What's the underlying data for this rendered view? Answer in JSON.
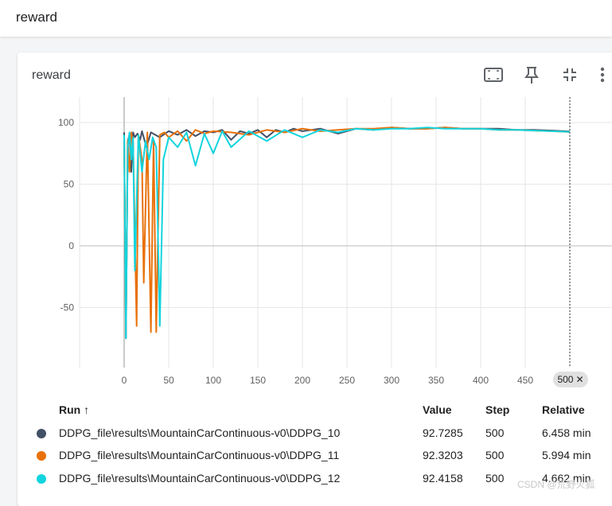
{
  "header": {
    "title": "reward"
  },
  "card": {
    "title": "reward"
  },
  "toolbar": {
    "icons": [
      "fullscreen-icon",
      "pin-icon",
      "collapse-icon",
      "more-vert-icon"
    ]
  },
  "chart_data": {
    "type": "line",
    "title": "reward",
    "xlabel": "",
    "ylabel": "",
    "xlim": [
      -50,
      550
    ],
    "ylim": [
      -100,
      120
    ],
    "x_ticks": [
      "0",
      "50",
      "100",
      "150",
      "200",
      "250",
      "300",
      "350",
      "400",
      "450"
    ],
    "x_tick_values": [
      0,
      50,
      100,
      150,
      200,
      250,
      300,
      350,
      400,
      450
    ],
    "y_ticks": [
      "100",
      "50",
      "0",
      "-50"
    ],
    "y_tick_values": [
      100,
      50,
      0,
      -50
    ],
    "grid": true,
    "hover_step": "500",
    "series": [
      {
        "name": "DDPG_file\\results\\MountainCarContinuous-v0\\DDPG_10",
        "color": "#425066",
        "x": [
          0,
          2,
          4,
          6,
          8,
          10,
          12,
          15,
          18,
          20,
          25,
          30,
          40,
          50,
          60,
          70,
          80,
          90,
          100,
          110,
          120,
          130,
          140,
          150,
          160,
          170,
          180,
          190,
          200,
          220,
          240,
          260,
          280,
          300,
          320,
          340,
          360,
          380,
          400,
          420,
          440,
          460,
          480,
          500
        ],
        "y": [
          92,
          -75,
          85,
          90,
          60,
          92,
          88,
          91,
          86,
          93,
          80,
          92,
          88,
          93,
          90,
          94,
          89,
          93,
          92,
          94,
          86,
          93,
          91,
          94,
          88,
          94,
          92,
          95,
          93,
          95,
          91,
          95,
          94,
          96,
          95,
          95,
          96,
          95,
          95,
          95,
          94,
          94,
          93.5,
          92.73
        ]
      },
      {
        "name": "DDPG_file\\results\\MountainCarContinuous-v0\\DDPG_11",
        "color": "#e8710a",
        "x": [
          0,
          2,
          4,
          6,
          8,
          10,
          14,
          16,
          20,
          22,
          26,
          30,
          33,
          36,
          40,
          45,
          50,
          60,
          70,
          80,
          90,
          100,
          120,
          140,
          160,
          180,
          200,
          220,
          240,
          260,
          280,
          300,
          320,
          340,
          360,
          380,
          400,
          420,
          440,
          460,
          480,
          500
        ],
        "y": [
          88,
          -70,
          85,
          60,
          92,
          85,
          -65,
          90,
          70,
          -30,
          92,
          -70,
          85,
          -70,
          90,
          92,
          88,
          93,
          85,
          94,
          91,
          93,
          92,
          90,
          94,
          92,
          95,
          93,
          94,
          95,
          95,
          96,
          95,
          95,
          96,
          95,
          95,
          94,
          94,
          93.5,
          93,
          92.32
        ]
      },
      {
        "name": "DDPG_file\\results\\MountainCarContinuous-v0\\DDPG_12",
        "color": "#12d4de",
        "x": [
          0,
          2,
          4,
          6,
          8,
          10,
          12,
          16,
          20,
          24,
          28,
          32,
          36,
          40,
          44,
          50,
          60,
          70,
          80,
          90,
          100,
          110,
          120,
          140,
          160,
          180,
          200,
          220,
          240,
          260,
          280,
          300,
          320,
          340,
          360,
          380,
          400,
          420,
          440,
          460,
          480,
          500
        ],
        "y": [
          90,
          -75,
          80,
          92,
          70,
          88,
          -20,
          90,
          60,
          85,
          70,
          88,
          80,
          -65,
          70,
          88,
          80,
          92,
          65,
          91,
          75,
          93,
          80,
          93,
          85,
          94,
          88,
          94,
          92,
          95,
          94,
          95,
          95,
          96,
          95,
          95,
          95,
          94,
          94,
          93.5,
          93,
          92.42
        ]
      }
    ]
  },
  "table": {
    "headers": {
      "run": "Run ↑",
      "value": "Value",
      "step": "Step",
      "relative": "Relative"
    },
    "rows": [
      {
        "run": "DDPG_file\\results\\MountainCarContinuous-v0\\DDPG_10",
        "value": "92.7285",
        "step": "500",
        "relative": "6.458 min",
        "color": "#425066"
      },
      {
        "run": "DDPG_file\\results\\MountainCarContinuous-v0\\DDPG_11",
        "value": "92.3203",
        "step": "500",
        "relative": "5.994 min",
        "color": "#e8710a"
      },
      {
        "run": "DDPG_file\\results\\MountainCarContinuous-v0\\DDPG_12",
        "value": "92.4158",
        "step": "500",
        "relative": "4.662 min",
        "color": "#12d4de"
      }
    ]
  },
  "watermark": "CSDN @荒野火狐"
}
